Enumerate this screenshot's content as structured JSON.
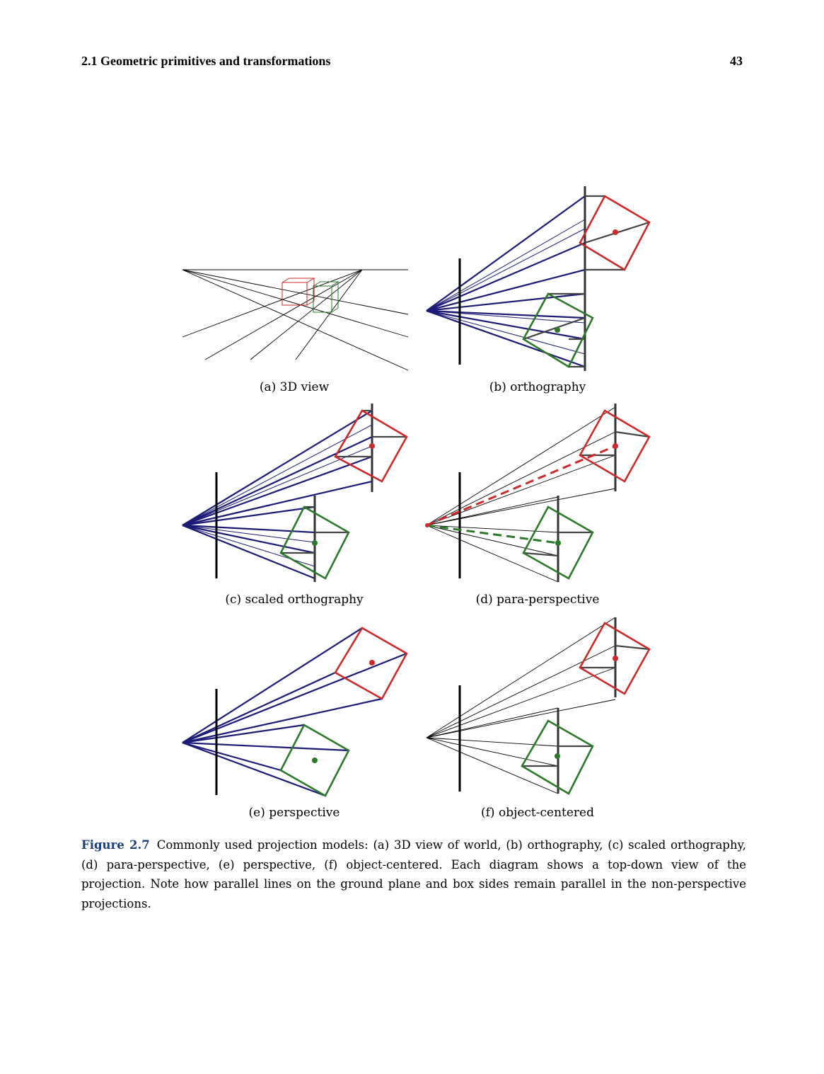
{
  "header": {
    "section": "2.1  Geometric primitives and transformations",
    "page_number": "43"
  },
  "figure": {
    "panels": [
      {
        "id": "a",
        "label": "(a) 3D view"
      },
      {
        "id": "b",
        "label": "(b) orthography"
      },
      {
        "id": "c",
        "label": "(c) scaled orthography"
      },
      {
        "id": "d",
        "label": "(d) para-perspective"
      },
      {
        "id": "e",
        "label": "(e) perspective"
      },
      {
        "id": "f",
        "label": "(f) object-centered"
      }
    ],
    "caption": {
      "label": "Figure 2.7",
      "text": "Commonly used projection models: (a) 3D view of world, (b) orthography, (c) scaled orthography, (d) para-perspective, (e) perspective, (f) object-centered. Each diagram shows a top-down view of the projection. Note how parallel lines on the ground plane and box sides remain parallel in the non-perspective projections."
    },
    "colors": {
      "ray": "#1c1c78",
      "red_box": "#cc2a2a",
      "green_box": "#2a7a2a",
      "plane": "#000000",
      "helper": "#444444"
    }
  }
}
